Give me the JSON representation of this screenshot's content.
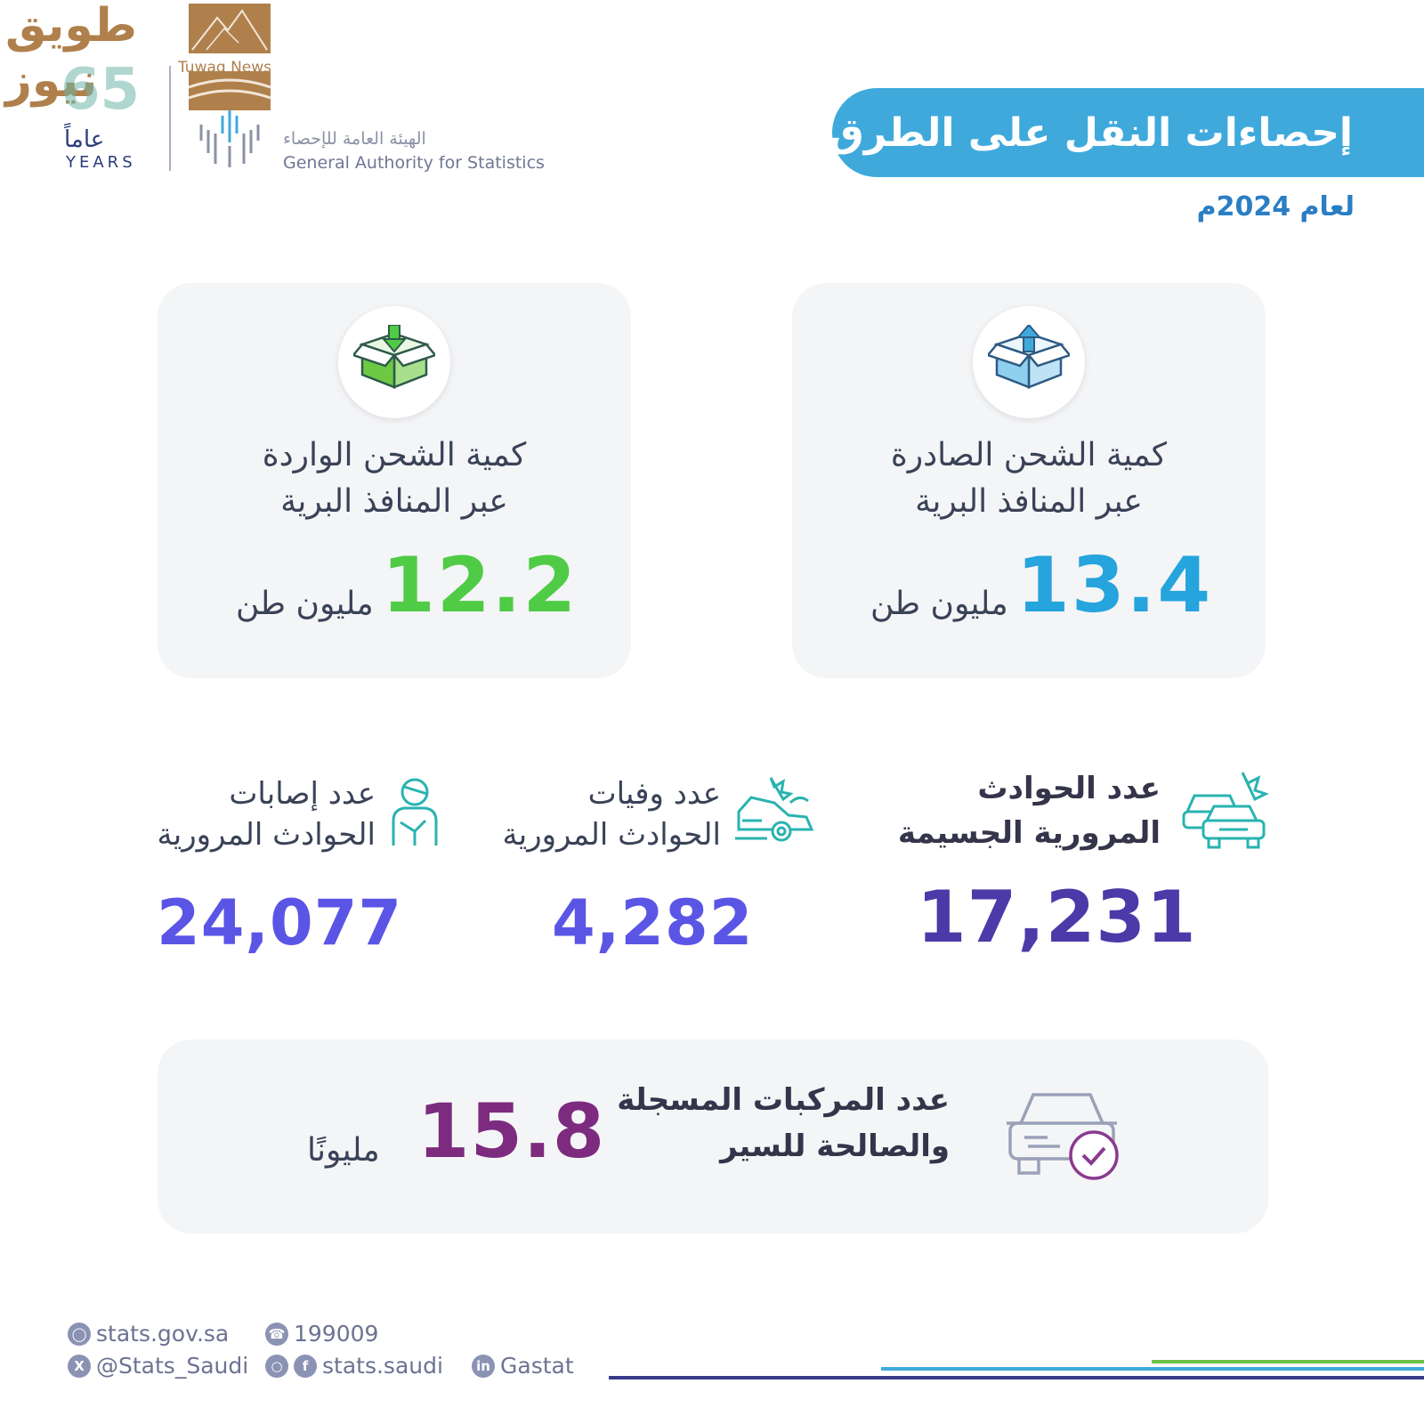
{
  "watermark": {
    "ar_line1": "طويق",
    "ar_line2": "نيوز",
    "en": "Tuwaq News",
    "years_number": "65",
    "years_ar": "عاماً",
    "years_en": "YEARS"
  },
  "authority": {
    "name_ar": "الهيئة العامة للإحصاء",
    "name_en": "General Authority for Statistics"
  },
  "header": {
    "title": "إحصاءات النقل على الطرق",
    "year": "لعام 2024م"
  },
  "colors": {
    "title_bg": "#3fa9dc",
    "outgoing": "#26a4dd",
    "incoming": "#4fcb45",
    "traffic": "#4b3aa8",
    "casualty": "#5b55e6",
    "vehicles": "#7c2b7e"
  },
  "cards": {
    "outgoing": {
      "icon": "box-export-icon",
      "label_line1": "كمية الشحن الصادرة",
      "label_line2": "عبر المنافذ البرية",
      "value": "13.4",
      "unit": "مليون طن"
    },
    "incoming": {
      "icon": "box-import-icon",
      "label_line1": "كمية الشحن الواردة",
      "label_line2": "عبر المنافذ البرية",
      "value": "12.2",
      "unit": "مليون طن"
    }
  },
  "stats": {
    "accidents": {
      "icon": "car-crash-icon",
      "label_line1": "عدد الحوادث",
      "label_line2": "المرورية الجسيمة",
      "value": "17,231"
    },
    "deaths": {
      "icon": "crashed-car-icon",
      "label_line1": "عدد وفيات",
      "label_line2": "الحوادث المرورية",
      "value": "4,282"
    },
    "injuries": {
      "icon": "injured-person-icon",
      "label_line1": "عدد إصابات",
      "label_line2": "الحوادث المرورية",
      "value": "24,077"
    }
  },
  "vehicles": {
    "icon": "car-check-icon",
    "label_line1": "عدد المركبات المسجلة",
    "label_line2": "والصالحة للسير",
    "value": "15.8",
    "unit": "مليونًا"
  },
  "footer": {
    "website": "stats.gov.sa",
    "phone": "199009",
    "twitter": "@Stats_Saudi",
    "social": "stats.saudi",
    "linkedin": "Gastat"
  }
}
